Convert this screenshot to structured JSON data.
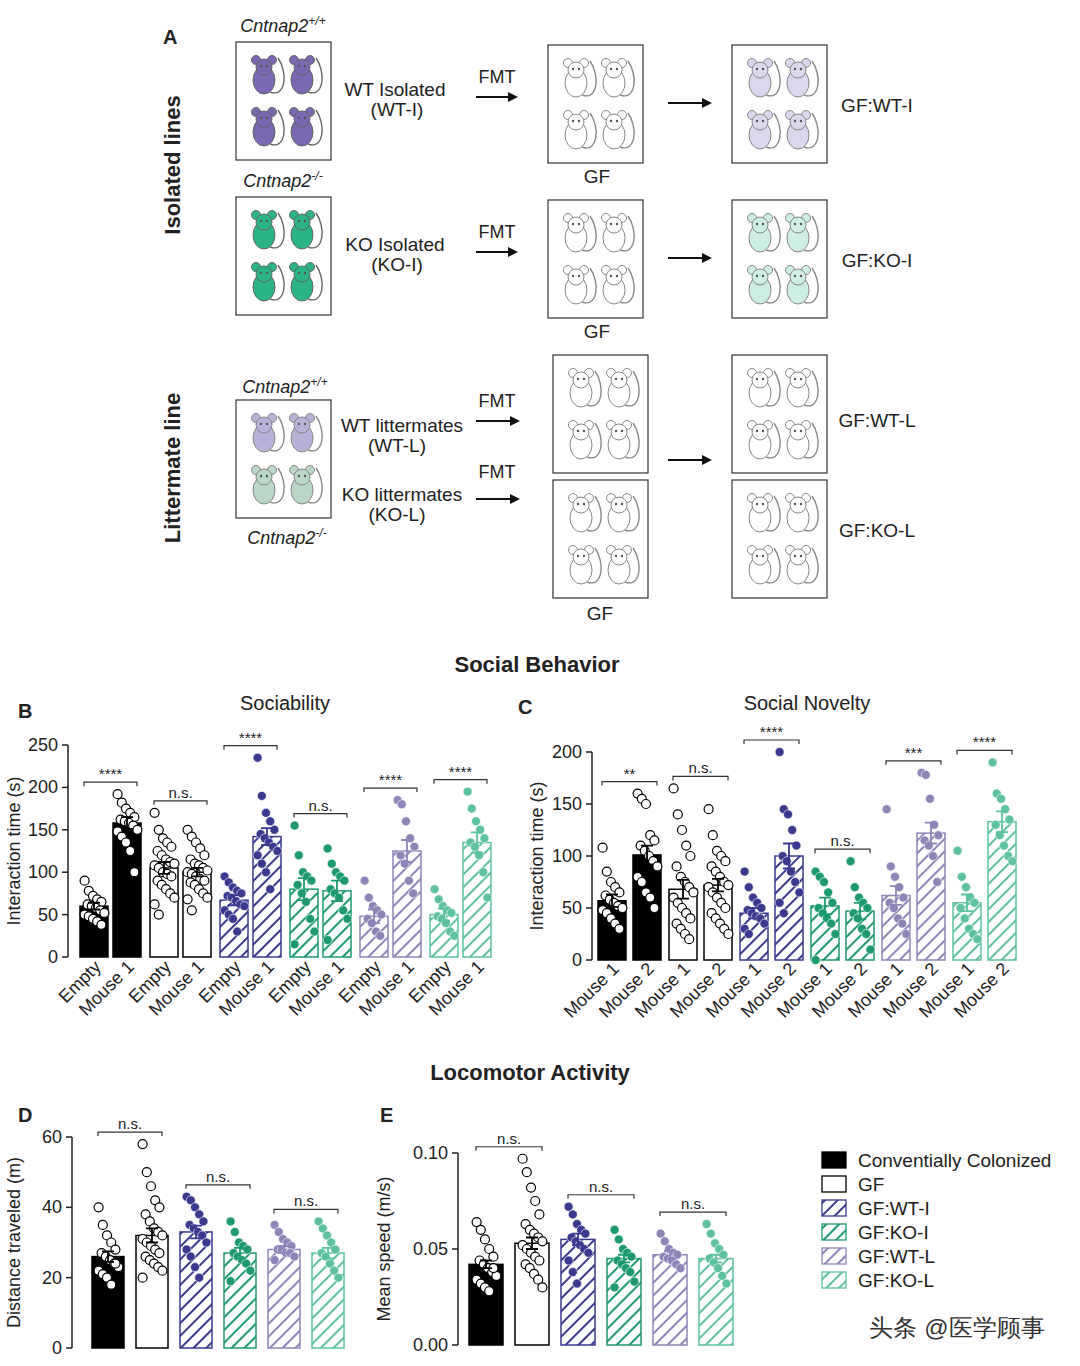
{
  "diagram": {
    "panel": "A",
    "isolated": {
      "label": "Isolated lines",
      "lines": [
        {
          "gene": "Cntnap2",
          "genotype": "+/+",
          "donor": "WT Isolated",
          "abbr": "(WT-I)",
          "transfer": "FMT",
          "recipient": "GF",
          "result": "GF:WT-I",
          "color": "#7b68b3",
          "result_color": "#dcd7ee"
        },
        {
          "gene": "Cntnap2",
          "genotype": "-/-",
          "donor": "KO Isolated",
          "abbr": "(KO-I)",
          "transfer": "FMT",
          "recipient": "GF",
          "result": "GF:KO-I",
          "color": "#2bb587",
          "result_color": "#cdeee0"
        }
      ]
    },
    "littermate": {
      "label": "Littermate line",
      "recipient": "GF",
      "lines": [
        {
          "gene": "Cntnap2",
          "genotype": "+/+",
          "donor": "WT littermates",
          "abbr": "(WT-L)",
          "transfer": "FMT",
          "result": "GF:WT-L",
          "color": "#b8b2d9"
        },
        {
          "gene": "Cntnap2",
          "genotype": "-/-",
          "donor": "KO littermates",
          "abbr": "(KO-L)",
          "transfer": "FMT",
          "result": "GF:KO-L",
          "color": "#b9d6c6"
        }
      ]
    }
  },
  "section_titles": [
    "Social Behavior",
    "Locomotor Activity"
  ],
  "legend_entries": [
    {
      "name": "Conventially Colonized",
      "color": "#000000"
    },
    {
      "name": "GF",
      "color": "#ffffff"
    },
    {
      "name": "GF:WT-I",
      "color": "#3b3a8f"
    },
    {
      "name": "GF:KO-I",
      "color": "#1f9a6f"
    },
    {
      "name": "GF:WT-L",
      "color": "#8d87b9"
    },
    {
      "name": "GF:KO-L",
      "color": "#5ec2a0"
    }
  ],
  "watermark": "头条 @医学顾事",
  "chart_data": [
    {
      "type": "bar",
      "panel": "B",
      "title": "Sociability",
      "y_label": "Interaction time (s)",
      "categories": [
        "Empty",
        "Mouse 1",
        "Empty",
        "Mouse 1",
        "Empty",
        "Mouse 1",
        "Empty",
        "Mouse 1",
        "Empty",
        "Mouse 1",
        "Empty",
        "Mouse 1"
      ],
      "values": [
        60,
        158,
        105,
        100,
        67,
        142,
        80,
        78,
        48,
        125,
        50,
        135
      ],
      "errors": [
        4,
        7,
        7,
        5,
        6,
        10,
        13,
        12,
        8,
        13,
        7,
        12
      ],
      "points": [
        [
          90,
          78,
          72,
          68,
          65,
          62,
          60,
          58,
          55,
          52,
          50,
          48,
          45,
          42,
          38
        ],
        [
          192,
          182,
          175,
          170,
          165,
          162,
          160,
          158,
          155,
          150,
          148,
          142,
          135,
          125,
          100
        ],
        [
          170,
          150,
          140,
          135,
          130,
          125,
          120,
          115,
          112,
          110,
          108,
          105,
          100,
          98,
          95,
          90,
          85,
          80,
          75,
          70,
          62,
          50
        ],
        [
          150,
          142,
          135,
          128,
          120,
          115,
          110,
          108,
          105,
          102,
          100,
          98,
          95,
          92,
          90,
          88,
          85,
          80,
          75,
          70,
          68,
          55
        ],
        [
          95,
          88,
          82,
          78,
          75,
          72,
          70,
          66,
          62,
          60,
          55,
          50,
          45,
          30
        ],
        [
          235,
          190,
          170,
          160,
          150,
          145,
          140,
          135,
          130,
          125,
          120,
          110,
          100,
          80
        ],
        [
          155,
          120,
          100,
          95,
          90,
          85,
          75,
          65,
          45,
          30,
          15
        ],
        [
          128,
          110,
          100,
          95,
          90,
          80,
          75,
          70,
          55,
          45,
          20
        ],
        [
          90,
          70,
          60,
          55,
          50,
          45,
          40,
          30,
          25
        ],
        [
          185,
          180,
          160,
          140,
          130,
          120,
          110,
          90,
          75
        ],
        [
          80,
          68,
          60,
          55,
          52,
          48,
          45,
          40,
          30,
          25
        ],
        [
          195,
          175,
          160,
          150,
          140,
          135,
          130,
          120,
          100,
          70
        ]
      ],
      "colors": [
        "#000000",
        "#000000",
        "#ffffff",
        "#ffffff",
        "#3b3a8f",
        "#3b3a8f",
        "#1f9a6f",
        "#1f9a6f",
        "#8d87b9",
        "#8d87b9",
        "#5ec2a0",
        "#5ec2a0"
      ],
      "annotations": [
        "****",
        "n.s.",
        "****",
        "n.s.",
        "****",
        "****"
      ],
      "ylim": [
        0,
        250
      ],
      "yticks": [
        0,
        50,
        100,
        150,
        200,
        250
      ]
    },
    {
      "type": "bar",
      "panel": "C",
      "title": "Social Novelty",
      "y_label": "Interaction time (s)",
      "categories": [
        "Mouse 1",
        "Mouse 2",
        "Mouse 1",
        "Mouse 2",
        "Mouse 1",
        "Mouse 2",
        "Mouse 1",
        "Mouse 2",
        "Mouse 1",
        "Mouse 2",
        "Mouse 1",
        "Mouse 2"
      ],
      "values": [
        57,
        101,
        68,
        72,
        45,
        100,
        52,
        47,
        62,
        122,
        55,
        133
      ],
      "errors": [
        6,
        9,
        9,
        6,
        5,
        12,
        8,
        8,
        9,
        10,
        8,
        10
      ],
      "points": [
        [
          108,
          85,
          75,
          70,
          65,
          62,
          58,
          55,
          52,
          50,
          48,
          45,
          40,
          35,
          30
        ],
        [
          160,
          155,
          150,
          120,
          115,
          110,
          105,
          100,
          95,
          90,
          80,
          75,
          65,
          60,
          50
        ],
        [
          165,
          140,
          125,
          110,
          100,
          90,
          80,
          75,
          70,
          65,
          60,
          55,
          50,
          45,
          40,
          35,
          30,
          25,
          20
        ],
        [
          145,
          120,
          105,
          100,
          95,
          90,
          85,
          80,
          75,
          72,
          70,
          65,
          60,
          55,
          50,
          45,
          40,
          35,
          30,
          25
        ],
        [
          85,
          70,
          60,
          55,
          50,
          48,
          45,
          42,
          40,
          35,
          30,
          25
        ],
        [
          200,
          145,
          140,
          125,
          110,
          100,
          95,
          85,
          75,
          65,
          55,
          45
        ],
        [
          85,
          80,
          75,
          65,
          55,
          50,
          45,
          40,
          35,
          25,
          0
        ],
        [
          95,
          70,
          60,
          55,
          50,
          45,
          40,
          30,
          25,
          10
        ],
        [
          145,
          90,
          80,
          70,
          60,
          55,
          50,
          40,
          35,
          25
        ],
        [
          180,
          178,
          155,
          130,
          120,
          115,
          110,
          100,
          75
        ],
        [
          105,
          80,
          70,
          60,
          55,
          50,
          40,
          30,
          25,
          20
        ],
        [
          190,
          160,
          155,
          145,
          135,
          130,
          120,
          110,
          100,
          95
        ]
      ],
      "colors": [
        "#000000",
        "#000000",
        "#ffffff",
        "#ffffff",
        "#3b3a8f",
        "#3b3a8f",
        "#1f9a6f",
        "#1f9a6f",
        "#8d87b9",
        "#8d87b9",
        "#5ec2a0",
        "#5ec2a0"
      ],
      "annotations": [
        "**",
        "n.s.",
        "****",
        "n.s.",
        "***",
        "****"
      ],
      "ylim": [
        0,
        200
      ],
      "yticks": [
        0,
        50,
        100,
        150,
        200
      ]
    },
    {
      "type": "bar",
      "panel": "D",
      "y_label": "Distance traveled (m)",
      "categories": [
        null,
        null,
        null,
        null,
        null,
        null
      ],
      "tick_labels": "y",
      "values": [
        26,
        32,
        33,
        27,
        28,
        27
      ],
      "errors": [
        1.5,
        2,
        1.8,
        1.5,
        1,
        1.5
      ],
      "points": [
        [
          40,
          35,
          32,
          30,
          28,
          27,
          26,
          25,
          24,
          23,
          22,
          21,
          20,
          18,
          24
        ],
        [
          58,
          50,
          46,
          42,
          40,
          38,
          36,
          34,
          33,
          32,
          31,
          30,
          29,
          28,
          27,
          26,
          25,
          24,
          23,
          22,
          20
        ],
        [
          43,
          42,
          40,
          38,
          36,
          35,
          34,
          33,
          32,
          30,
          28,
          26,
          23,
          20
        ],
        [
          36,
          33,
          30,
          29,
          28,
          27,
          26,
          25,
          24,
          22,
          19
        ],
        [
          35,
          33,
          31,
          30,
          29,
          28,
          28,
          27,
          27,
          26,
          25
        ],
        [
          36,
          34,
          32,
          30,
          28,
          27,
          26,
          24,
          22,
          20
        ]
      ],
      "colors": [
        "#000000",
        "#ffffff",
        "#3b3a8f",
        "#1f9a6f",
        "#8d87b9",
        "#5ec2a0"
      ],
      "annotations": [
        "n.s.",
        "n.s.",
        "n.s."
      ],
      "ylim": [
        0,
        60
      ],
      "yticks": [
        0,
        20,
        40,
        60
      ]
    },
    {
      "type": "bar",
      "panel": "E",
      "y_label": "Mean speed (m/s)",
      "categories": [
        null,
        null,
        null,
        null,
        null,
        null
      ],
      "tick_labels": "y",
      "values": [
        0.042,
        0.053,
        0.055,
        0.045,
        0.047,
        0.045
      ],
      "errors": [
        0.002,
        0.003,
        0.003,
        0.002,
        0.002,
        0.002
      ],
      "points": [
        [
          0.064,
          0.06,
          0.055,
          0.05,
          0.046,
          0.044,
          0.042,
          0.04,
          0.038,
          0.036,
          0.034,
          0.032,
          0.03,
          0.028,
          0.04
        ],
        [
          0.097,
          0.09,
          0.082,
          0.075,
          0.068,
          0.063,
          0.06,
          0.058,
          0.056,
          0.054,
          0.052,
          0.05,
          0.048,
          0.046,
          0.044,
          0.042,
          0.04,
          0.037,
          0.034,
          0.03
        ],
        [
          0.072,
          0.068,
          0.063,
          0.06,
          0.058,
          0.056,
          0.054,
          0.052,
          0.05,
          0.048,
          0.044,
          0.038,
          0.032
        ],
        [
          0.06,
          0.055,
          0.05,
          0.048,
          0.046,
          0.044,
          0.042,
          0.04,
          0.038,
          0.033,
          0.03
        ],
        [
          0.058,
          0.054,
          0.05,
          0.048,
          0.047,
          0.046,
          0.045,
          0.044,
          0.042,
          0.04
        ],
        [
          0.063,
          0.058,
          0.053,
          0.05,
          0.047,
          0.045,
          0.043,
          0.04,
          0.036,
          0.032
        ]
      ],
      "colors": [
        "#000000",
        "#ffffff",
        "#3b3a8f",
        "#1f9a6f",
        "#8d87b9",
        "#5ec2a0"
      ],
      "annotations": [
        "n.s.",
        "n.s.",
        "n.s."
      ],
      "ylim": [
        0,
        0.1
      ],
      "yticks": [
        {
          "value": 0,
          "label": "0.00"
        },
        {
          "value": 0.05,
          "label": "0.05"
        },
        {
          "value": 0.1,
          "label": "0.10"
        }
      ]
    }
  ]
}
